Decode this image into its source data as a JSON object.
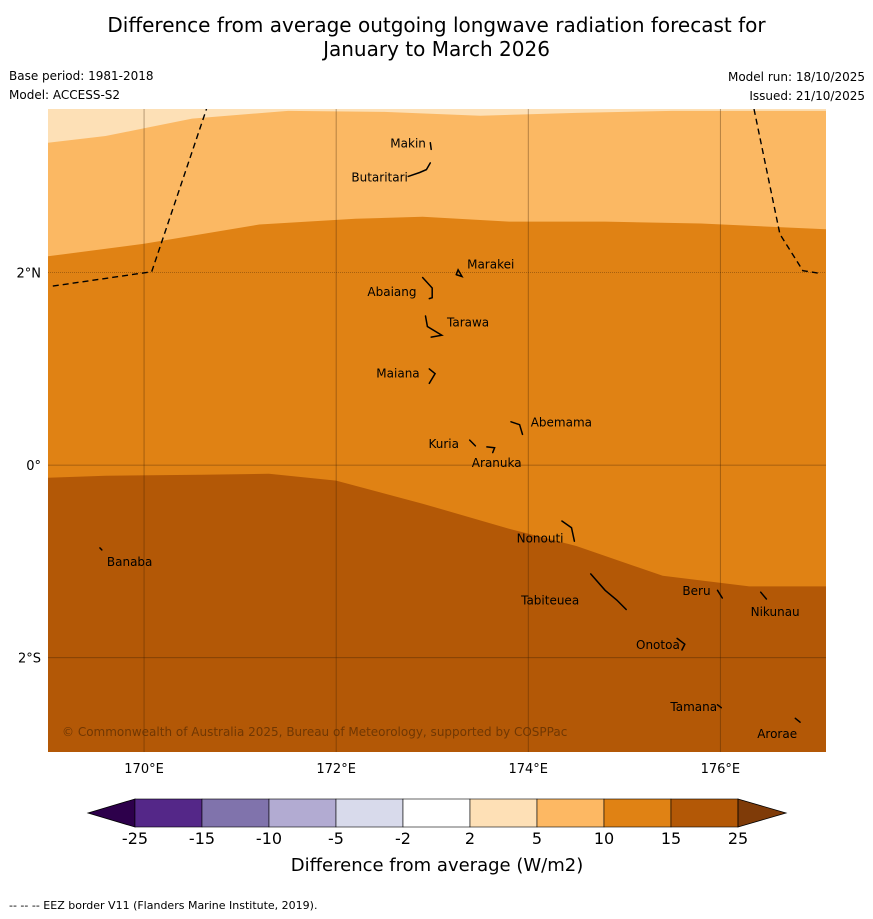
{
  "header": {
    "title_line1": "Difference from average outgoing longwave radiation forecast for",
    "title_line2": "January to March 2026",
    "base_period": "Base period: 1981-2018",
    "model": "Model: ACCESS-S2",
    "model_run": "Model run: 18/10/2025",
    "issued": "Issued: 21/10/2025"
  },
  "map": {
    "lon_range": [
      169.0,
      177.1
    ],
    "lat_range": [
      -2.98,
      3.7
    ],
    "x_ticks": [
      {
        "lon": 170,
        "label": "170°E"
      },
      {
        "lon": 172,
        "label": "172°E"
      },
      {
        "lon": 174,
        "label": "174°E"
      },
      {
        "lon": 176,
        "label": "176°E"
      }
    ],
    "y_ticks": [
      {
        "lat": 2,
        "label": "2°N"
      },
      {
        "lat": 0,
        "label": "0°"
      },
      {
        "lat": -2,
        "label": "2°S"
      }
    ],
    "fill_bands": [
      {
        "range": "2 to 5",
        "color": "#fde0b6"
      },
      {
        "range": "5 to 10",
        "color": "#fbb863"
      },
      {
        "range": "10 to 15",
        "color": "#e08214"
      },
      {
        "range": "15 to 25",
        "color": "#b35806"
      }
    ],
    "contour_5": [
      [
        169.0,
        3.35
      ],
      [
        169.6,
        3.42
      ],
      [
        170.5,
        3.6
      ],
      [
        171.5,
        3.68
      ],
      [
        172.5,
        3.67
      ],
      [
        173.5,
        3.63
      ],
      [
        174.5,
        3.66
      ],
      [
        175.5,
        3.68
      ],
      [
        176.5,
        3.68
      ],
      [
        177.1,
        3.68
      ]
    ],
    "contour_10": [
      [
        169.0,
        2.17
      ],
      [
        170.0,
        2.3
      ],
      [
        171.2,
        2.5
      ],
      [
        172.2,
        2.56
      ],
      [
        172.9,
        2.58
      ],
      [
        173.8,
        2.53
      ],
      [
        174.8,
        2.53
      ],
      [
        175.8,
        2.51
      ],
      [
        177.1,
        2.45
      ]
    ],
    "contour_15": [
      [
        169.0,
        -0.13
      ],
      [
        169.6,
        -0.11
      ],
      [
        170.6,
        -0.1
      ],
      [
        171.3,
        -0.09
      ],
      [
        172.0,
        -0.16
      ],
      [
        172.9,
        -0.4
      ],
      [
        173.8,
        -0.66
      ],
      [
        174.5,
        -0.84
      ],
      [
        175.4,
        -1.15
      ],
      [
        176.3,
        -1.26
      ],
      [
        177.1,
        -1.26
      ]
    ],
    "eez_west": [
      [
        169.05,
        1.86
      ],
      [
        170.08,
        2.01
      ],
      [
        170.65,
        3.7
      ]
    ],
    "eez_east": [
      [
        176.35,
        3.7
      ],
      [
        176.62,
        2.4
      ],
      [
        176.86,
        2.02
      ],
      [
        177.05,
        1.99
      ]
    ],
    "islands": [
      {
        "name": "Makin",
        "lon": 172.98,
        "lat": 3.32,
        "shape": [
          [
            172.98,
            3.35
          ],
          [
            172.99,
            3.28
          ]
        ],
        "label_dx": -40,
        "label_dy": -2
      },
      {
        "name": "Butaritari",
        "lon": 172.95,
        "lat": 3.07,
        "shape": [
          [
            172.75,
            3.0
          ],
          [
            172.87,
            3.04
          ],
          [
            172.94,
            3.07
          ],
          [
            172.98,
            3.14
          ]
        ],
        "label_dx": -76,
        "label_dy": 8
      },
      {
        "name": "Marakei",
        "lon": 173.28,
        "lat": 2.0,
        "shape": [
          [
            173.25,
            1.98
          ],
          [
            173.27,
            2.03
          ],
          [
            173.31,
            1.96
          ],
          [
            173.25,
            1.98
          ]
        ],
        "label_dx": 8,
        "label_dy": -8
      },
      {
        "name": "Abaiang",
        "lon": 172.95,
        "lat": 1.8,
        "shape": [
          [
            172.9,
            1.95
          ],
          [
            173.0,
            1.84
          ],
          [
            173.0,
            1.74
          ],
          [
            172.97,
            1.73
          ]
        ],
        "label_dx": -60,
        "label_dy": 0
      },
      {
        "name": "Tarawa",
        "lon": 173.05,
        "lat": 1.4,
        "shape": [
          [
            172.93,
            1.55
          ],
          [
            172.95,
            1.44
          ],
          [
            173.1,
            1.35
          ],
          [
            172.99,
            1.33
          ]
        ],
        "label_dx": 10,
        "label_dy": -8
      },
      {
        "name": "Maiana",
        "lon": 172.98,
        "lat": 0.95,
        "shape": [
          [
            172.97,
            1.0
          ],
          [
            173.03,
            0.95
          ],
          [
            172.97,
            0.85
          ]
        ],
        "label_dx": -54,
        "label_dy": 0
      },
      {
        "name": "Abemama",
        "lon": 173.88,
        "lat": 0.4,
        "shape": [
          [
            173.82,
            0.45
          ],
          [
            173.91,
            0.42
          ],
          [
            173.94,
            0.32
          ]
        ],
        "label_dx": 14,
        "label_dy": -4
      },
      {
        "name": "Kuria",
        "lon": 173.42,
        "lat": 0.22,
        "shape": [
          [
            173.39,
            0.26
          ],
          [
            173.45,
            0.2
          ]
        ],
        "label_dx": -44,
        "label_dy": 0
      },
      {
        "name": "Aranuka",
        "lon": 173.6,
        "lat": 0.17,
        "shape": [
          [
            173.57,
            0.19
          ],
          [
            173.65,
            0.18
          ],
          [
            173.63,
            0.13
          ]
        ],
        "label_dx": -18,
        "label_dy": 14
      },
      {
        "name": "Nonouti",
        "lon": 174.42,
        "lat": -0.7,
        "shape": [
          [
            174.35,
            -0.58
          ],
          [
            174.45,
            -0.65
          ],
          [
            174.48,
            -0.79
          ]
        ],
        "label_dx": -52,
        "label_dy": 6
      },
      {
        "name": "Banaba",
        "lon": 169.54,
        "lat": -0.88,
        "shape": [
          [
            169.54,
            -0.86
          ],
          [
            169.56,
            -0.88
          ]
        ],
        "label_dx": 7,
        "label_dy": 12
      },
      {
        "name": "Tabiteuea",
        "lon": 174.8,
        "lat": -1.3,
        "shape": [
          [
            174.65,
            -1.13
          ],
          [
            174.8,
            -1.3
          ],
          [
            174.92,
            -1.4
          ],
          [
            175.02,
            -1.5
          ]
        ],
        "label_dx": -84,
        "label_dy": 10
      },
      {
        "name": "Beru",
        "lon": 175.98,
        "lat": -1.32,
        "shape": [
          [
            175.97,
            -1.3
          ],
          [
            176.02,
            -1.38
          ]
        ],
        "label_dx": -36,
        "label_dy": -1
      },
      {
        "name": "Nikunau",
        "lon": 176.45,
        "lat": -1.35,
        "shape": [
          [
            176.42,
            -1.32
          ],
          [
            176.48,
            -1.39
          ]
        ],
        "label_dx": -13,
        "label_dy": 17
      },
      {
        "name": "Onotoa",
        "lon": 175.57,
        "lat": -1.85,
        "shape": [
          [
            175.55,
            -1.8
          ],
          [
            175.63,
            -1.86
          ],
          [
            175.6,
            -1.92
          ]
        ],
        "label_dx": -43,
        "label_dy": 2
      },
      {
        "name": "Tamana",
        "lon": 175.98,
        "lat": -2.5,
        "shape": [
          [
            175.97,
            -2.49
          ],
          [
            176.01,
            -2.52
          ]
        ],
        "label_dx": -48,
        "label_dy": 1
      },
      {
        "name": "Arorae",
        "lon": 176.8,
        "lat": -2.65,
        "shape": [
          [
            176.78,
            -2.63
          ],
          [
            176.83,
            -2.67
          ]
        ],
        "label_dx": -40,
        "label_dy": 14
      }
    ],
    "copyright": "© Commonwealth of Australia 2025, Bureau of Meteorology, supported by COSPPac"
  },
  "colorbar": {
    "colors": [
      "#542788",
      "#8073ac",
      "#b2abd2",
      "#d8daeb",
      "#ffffff",
      "#fee0b6",
      "#fdb863",
      "#e08214",
      "#b35806"
    ],
    "extend_low_color": "#2d004b",
    "extend_high_color": "#7f3b08",
    "tick_labels": [
      "-25",
      "-15",
      "-10",
      "-5",
      "-2",
      "2",
      "5",
      "10",
      "15",
      "25"
    ],
    "label": "Difference from average (W/m2)"
  },
  "footer": {
    "eez_note": "--  --  -- EEZ border V11 (Flanders Marine Institute, 2019)."
  }
}
